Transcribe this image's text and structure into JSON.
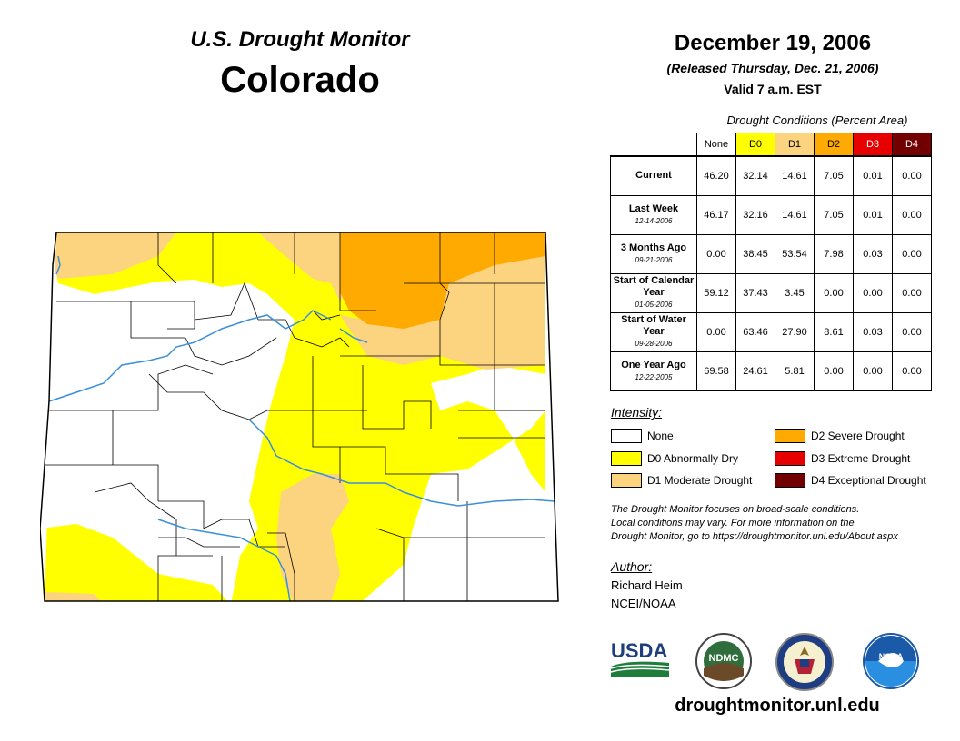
{
  "header": {
    "monitor_title": "U.S. Drought Monitor",
    "state": "Colorado",
    "date": "December 19, 2006",
    "released": "(Released Thursday, Dec. 21, 2006)",
    "valid": "Valid 7 a.m. EST"
  },
  "table": {
    "caption": "Drought Conditions (Percent Area)",
    "columns": [
      "None",
      "D0",
      "D1",
      "D2",
      "D3",
      "D4"
    ],
    "rows": [
      {
        "label": "Current",
        "date": "",
        "values": [
          "46.20",
          "32.14",
          "14.61",
          "7.05",
          "0.01",
          "0.00"
        ]
      },
      {
        "label": "Last Week",
        "date": "12-14-2006",
        "values": [
          "46.17",
          "32.16",
          "14.61",
          "7.05",
          "0.01",
          "0.00"
        ]
      },
      {
        "label": "3 Months Ago",
        "date": "09-21-2006",
        "values": [
          "0.00",
          "38.45",
          "53.54",
          "7.98",
          "0.03",
          "0.00"
        ]
      },
      {
        "label": "Start of Calendar Year",
        "date": "01-05-2006",
        "values": [
          "59.12",
          "37.43",
          "3.45",
          "0.00",
          "0.00",
          "0.00"
        ]
      },
      {
        "label": "Start of Water Year",
        "date": "09-28-2006",
        "values": [
          "0.00",
          "63.46",
          "27.90",
          "8.61",
          "0.03",
          "0.00"
        ]
      },
      {
        "label": "One Year Ago",
        "date": "12-22-2005",
        "values": [
          "69.58",
          "24.61",
          "5.81",
          "0.00",
          "0.00",
          "0.00"
        ]
      }
    ]
  },
  "legend": {
    "title": "Intensity:",
    "items": [
      {
        "label": "None",
        "color": "#ffffff"
      },
      {
        "label": "D0 Abnormally Dry",
        "color": "#ffff00"
      },
      {
        "label": "D1 Moderate Drought",
        "color": "#fcd37f"
      },
      {
        "label": "D2 Severe Drought",
        "color": "#ffaa00"
      },
      {
        "label": "D3 Extreme Drought",
        "color": "#e60000"
      },
      {
        "label": "D4 Exceptional Drought",
        "color": "#730000"
      }
    ]
  },
  "note": {
    "line1": "The Drought Monitor focuses on broad-scale conditions.",
    "line2": "Local conditions may vary. For more information on the",
    "line3": "Drought Monitor, go to https://droughtmonitor.unl.edu/About.aspx"
  },
  "author": {
    "label": "Author:",
    "name": "Richard Heim",
    "org": "NCEI/NOAA"
  },
  "logos": {
    "usda": "USDA",
    "ndmc": "NDMC",
    "noaa": "NOAA"
  },
  "website": "droughtmonitor.unl.edu",
  "colors": {
    "none": "#ffffff",
    "d0": "#ffff00",
    "d1": "#fcd37f",
    "d2": "#ffaa00",
    "d3": "#e60000",
    "d4": "#730000",
    "river": "#3a8fd9"
  }
}
